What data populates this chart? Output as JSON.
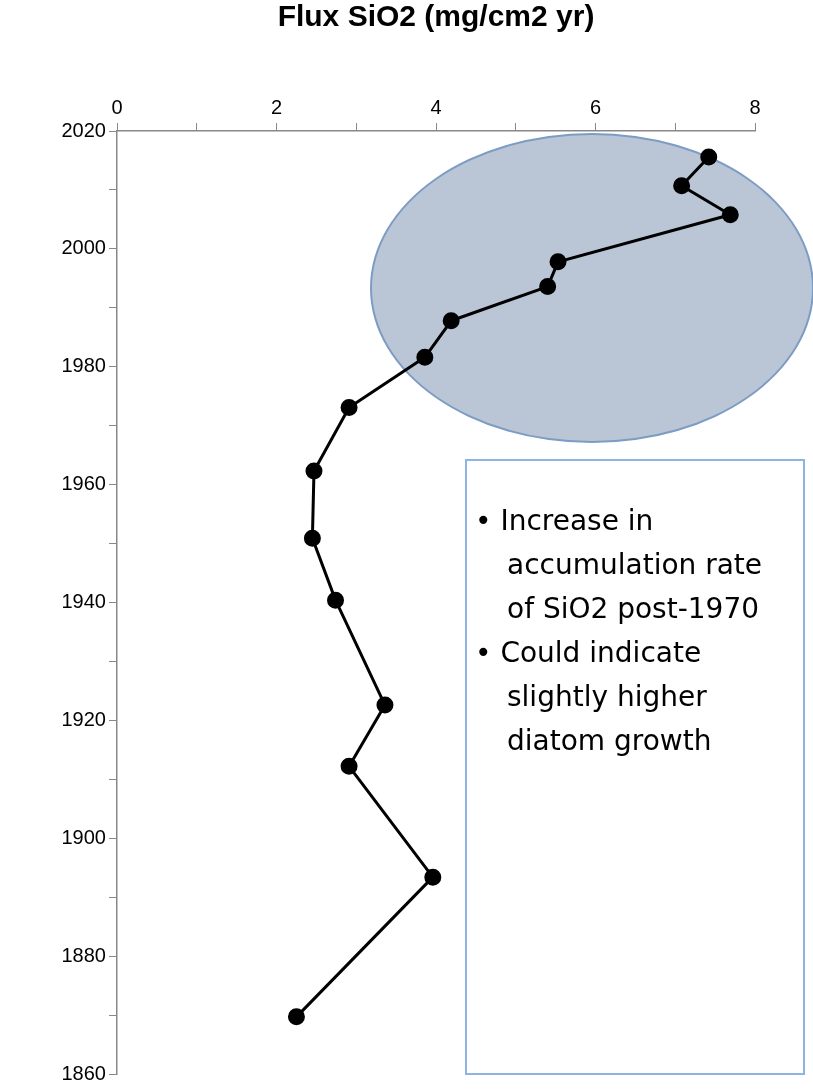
{
  "chart_data": {
    "type": "line",
    "xlabel": "Flux SiO2 (mg/cm2 yr)",
    "x": [
      7.42,
      7.08,
      7.69,
      5.53,
      5.4,
      4.19,
      3.86,
      2.91,
      2.47,
      2.45,
      2.74,
      3.36,
      2.91,
      3.96,
      2.25
    ],
    "series": [
      {
        "color": "#000000",
        "values": [
          2015.6,
          2010.7,
          2005.8,
          1997.8,
          1993.6,
          1987.8,
          1981.6,
          1973.1,
          1962.3,
          1950.9,
          1940.4,
          1922.6,
          1912.2,
          1893.4,
          1869.7
        ]
      }
    ],
    "xlim": [
      0,
      8
    ],
    "xticks": [
      0,
      {
        "value": 1,
        "label": null
      },
      2,
      {
        "value": 3,
        "label": null
      },
      4,
      {
        "value": 5,
        "label": null
      },
      6,
      {
        "value": 7,
        "label": null
      },
      8
    ],
    "ylim": [
      1860,
      2020
    ],
    "yticks": [
      1860,
      {
        "value": 1870,
        "label": null
      },
      1880,
      {
        "value": 1890,
        "label": null
      },
      1900,
      {
        "value": 1910,
        "label": null
      },
      1920,
      {
        "value": 1930,
        "label": null
      },
      1940,
      {
        "value": 1950,
        "label": null
      },
      1960,
      {
        "value": 1970,
        "label": null
      },
      1980,
      {
        "value": 1990,
        "label": null
      },
      2000,
      {
        "value": 2010,
        "label": null
      },
      2020
    ],
    "annotations": [
      "• Increase in accumulation rate of SiO2 post-1970",
      "• Could indicate slightly higher diatom growth"
    ],
    "grid": false,
    "legend": false,
    "marker": "circle",
    "line_style": "solid"
  }
}
